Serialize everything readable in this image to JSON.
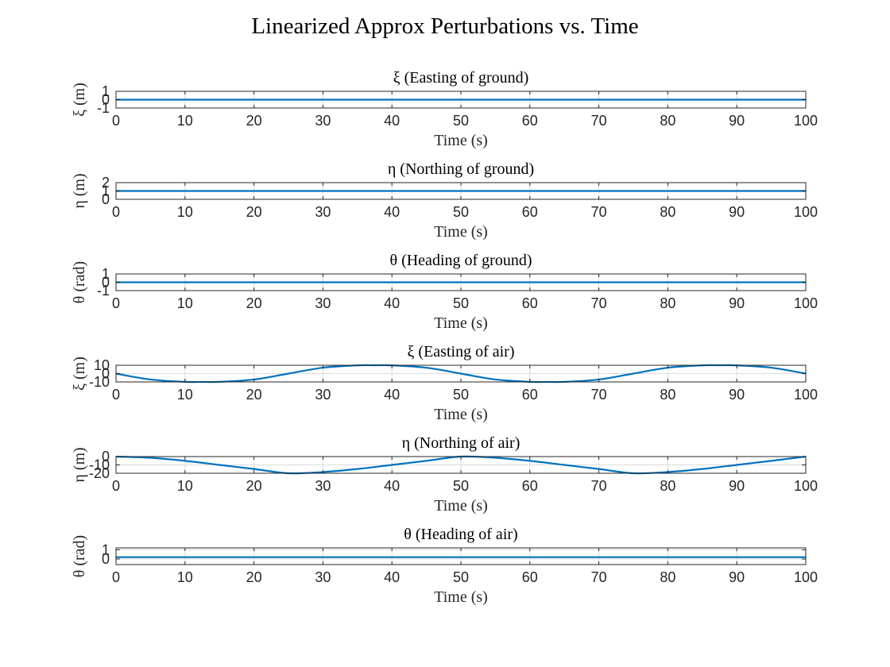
{
  "figure": {
    "title": "Linearized Approx Perturbations vs. Time"
  },
  "style": {
    "line_color": "#0072BD",
    "axis_color": "#262626",
    "grid_color": "#dcdcdc",
    "background": "#ffffff"
  },
  "chart_data": [
    {
      "type": "line",
      "title": "ξ (Easting of ground)",
      "xlabel": "Time (s)",
      "ylabel": "ξ (m)",
      "xlim": [
        0,
        100
      ],
      "ylim": [
        -1,
        1
      ],
      "xticks": [
        0,
        10,
        20,
        30,
        40,
        50,
        60,
        70,
        80,
        90,
        100
      ],
      "yticks": [
        -1,
        0,
        1
      ],
      "grid": "horizontal",
      "series": [
        {
          "x": [
            0,
            100
          ],
          "y": [
            0,
            0
          ]
        }
      ]
    },
    {
      "type": "line",
      "title": "η (Northing of ground)",
      "xlabel": "Time (s)",
      "ylabel": "η (m)",
      "xlim": [
        0,
        100
      ],
      "ylim": [
        0,
        2
      ],
      "xticks": [
        0,
        10,
        20,
        30,
        40,
        50,
        60,
        70,
        80,
        90,
        100
      ],
      "yticks": [
        0,
        1,
        2
      ],
      "grid": "horizontal",
      "series": [
        {
          "x": [
            0,
            100
          ],
          "y": [
            1,
            1
          ]
        }
      ]
    },
    {
      "type": "line",
      "title": "θ (Heading of ground)",
      "xlabel": "Time (s)",
      "ylabel": "θ (rad)",
      "xlim": [
        0,
        100
      ],
      "ylim": [
        -1,
        1
      ],
      "xticks": [
        0,
        10,
        20,
        30,
        40,
        50,
        60,
        70,
        80,
        90,
        100
      ],
      "yticks": [
        -1,
        0,
        1
      ],
      "grid": "horizontal",
      "series": [
        {
          "x": [
            0,
            100
          ],
          "y": [
            0,
            0
          ]
        }
      ]
    },
    {
      "type": "line",
      "title": "ξ (Easting of air)",
      "xlabel": "Time (s)",
      "ylabel": "ξ (m)",
      "xlim": [
        0,
        100
      ],
      "ylim": [
        -10,
        10
      ],
      "xticks": [
        0,
        10,
        20,
        30,
        40,
        50,
        60,
        70,
        80,
        90,
        100
      ],
      "yticks": [
        -10,
        0,
        10
      ],
      "grid": "horizontal",
      "series": [
        {
          "x": [
            0,
            5,
            10,
            12.5,
            15,
            20,
            25,
            30,
            35,
            37.5,
            40,
            45,
            50,
            55,
            60,
            62.5,
            65,
            70,
            75,
            80,
            85,
            87.5,
            90,
            95,
            100
          ],
          "y": [
            0,
            -7.07,
            -9.9,
            -10,
            -9.9,
            -7.07,
            0,
            7.07,
            9.9,
            10,
            9.9,
            7.07,
            0,
            -7.07,
            -9.9,
            -10,
            -9.9,
            -7.07,
            0,
            7.07,
            9.9,
            10,
            9.9,
            7.07,
            0
          ]
        }
      ]
    },
    {
      "type": "line",
      "title": "η (Northing of air)",
      "xlabel": "Time (s)",
      "ylabel": "η (m)",
      "xlim": [
        0,
        100
      ],
      "ylim": [
        -20,
        0
      ],
      "xticks": [
        0,
        10,
        20,
        30,
        40,
        50,
        60,
        70,
        80,
        90,
        100
      ],
      "yticks": [
        -20,
        -10,
        0
      ],
      "grid": "horizontal",
      "series": [
        {
          "x": [
            0,
            5,
            10,
            15,
            20,
            25,
            30,
            35,
            40,
            45,
            50,
            55,
            60,
            65,
            70,
            75,
            80,
            85,
            90,
            95,
            100
          ],
          "y": [
            0,
            -1.46,
            -5.1,
            -10,
            -14.9,
            -20,
            -18.5,
            -14.9,
            -10,
            -5.1,
            0,
            -1.46,
            -5.1,
            -10,
            -14.9,
            -20,
            -18.5,
            -14.9,
            -10,
            -5.1,
            0
          ]
        }
      ]
    },
    {
      "type": "line",
      "title": "θ (Heading of air)",
      "xlabel": "Time (s)",
      "ylabel": "θ (rad)",
      "xlim": [
        0,
        100
      ],
      "ylim": [
        -0.6,
        1.2
      ],
      "xticks": [
        0,
        10,
        20,
        30,
        40,
        50,
        60,
        70,
        80,
        90,
        100
      ],
      "yticks": [
        0,
        1
      ],
      "grid": "horizontal",
      "series": [
        {
          "x": [
            0,
            100
          ],
          "y": [
            0.2,
            0.2
          ]
        }
      ]
    }
  ]
}
